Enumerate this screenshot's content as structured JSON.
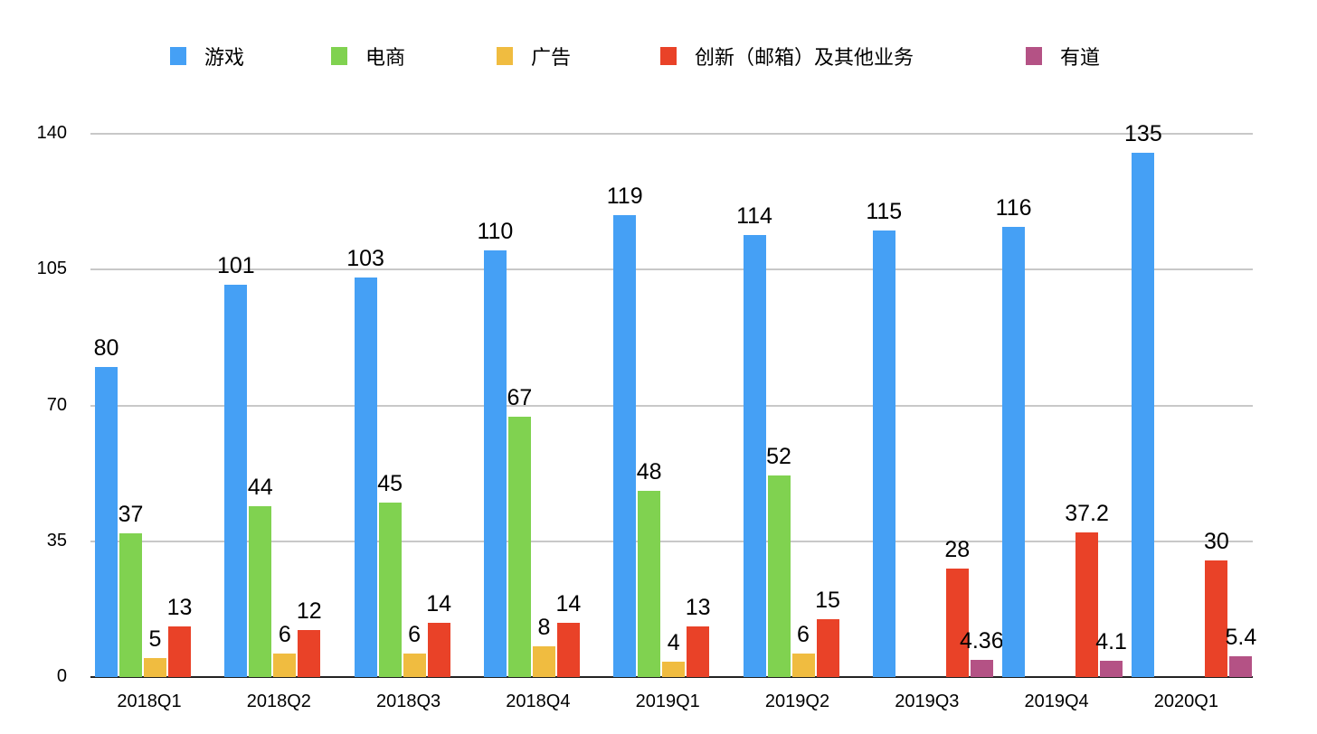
{
  "chart_data": {
    "type": "bar",
    "title": "",
    "xlabel": "",
    "ylabel": "",
    "ylim": [
      0,
      140
    ],
    "yticks": [
      0,
      35,
      70,
      105,
      140
    ],
    "grid": true,
    "legend_position": "top",
    "categories": [
      "2018Q1",
      "2018Q2",
      "2018Q3",
      "2018Q4",
      "2019Q1",
      "2019Q2",
      "2019Q3",
      "2019Q4",
      "2020Q1"
    ],
    "series": [
      {
        "name": "游戏",
        "color": "#45a0f5",
        "values": [
          80,
          101,
          103,
          110,
          119,
          114,
          115,
          116,
          135
        ]
      },
      {
        "name": "电商",
        "color": "#80d250",
        "values": [
          37,
          44,
          45,
          67,
          48,
          52,
          null,
          null,
          null
        ]
      },
      {
        "name": "广告",
        "color": "#f0bc40",
        "values": [
          5,
          6,
          6,
          8,
          4,
          6,
          null,
          null,
          null
        ]
      },
      {
        "name": "创新（邮箱）及其他业务",
        "color": "#e94228",
        "values": [
          13,
          12,
          14,
          14,
          13,
          15,
          28,
          37.2,
          30
        ]
      },
      {
        "name": "有道",
        "color": "#b45285",
        "values": [
          null,
          null,
          null,
          null,
          null,
          null,
          4.36,
          4.1,
          5.4
        ]
      }
    ],
    "value_labels": [
      [
        "80",
        "101",
        "103",
        "110",
        "119",
        "114",
        "115",
        "116",
        "135"
      ],
      [
        "37",
        "44",
        "45",
        "67",
        "48",
        "52",
        null,
        null,
        null
      ],
      [
        "5",
        "6",
        "6",
        "8",
        "4",
        "6",
        null,
        null,
        null
      ],
      [
        "13",
        "12",
        "14",
        "14",
        "13",
        "15",
        "28",
        "37.2",
        "30"
      ],
      [
        null,
        null,
        null,
        null,
        null,
        null,
        "4.36",
        "4.1",
        "5.4"
      ]
    ]
  },
  "legend": {
    "items": [
      {
        "label": "游戏",
        "color": "#45a0f5"
      },
      {
        "label": "电商",
        "color": "#80d250"
      },
      {
        "label": "广告",
        "color": "#f0bc40"
      },
      {
        "label": "创新（邮箱）及其他业务",
        "color": "#e94228"
      },
      {
        "label": "有道",
        "color": "#b45285"
      }
    ]
  },
  "axis": {
    "y_labels": [
      "0",
      "35",
      "70",
      "105",
      "140"
    ]
  }
}
